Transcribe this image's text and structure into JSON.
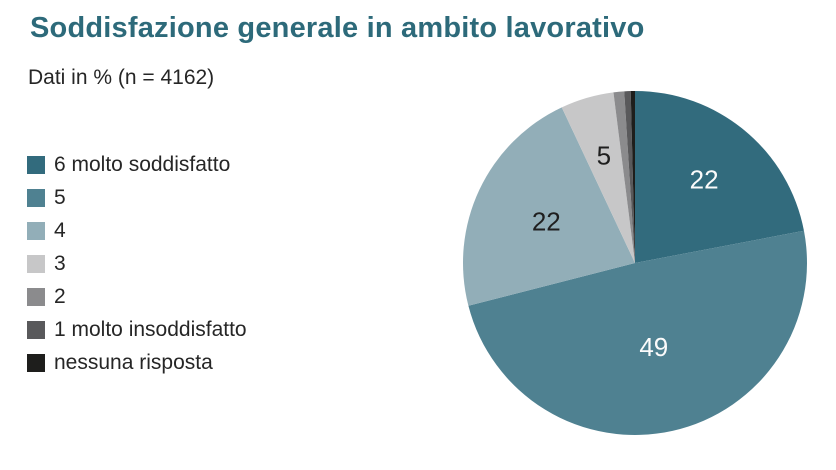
{
  "page": {
    "background": "#ffffff"
  },
  "chart_data": {
    "type": "pie",
    "title": "Soddisfazione generale in ambito lavorativo",
    "subtitle": "Dati in % (n = 4162)",
    "unit": "%",
    "n_shown": "4162",
    "title_color": "#2d6a7a",
    "text_color": "#262626",
    "legend_position": "left",
    "direction": "clockwise",
    "start_angle": "12-oclock",
    "slices": [
      {
        "label": "6 molto soddisfatto",
        "value": 22,
        "display": "22",
        "color": "#326b7d",
        "label_color": "#fbfbfb",
        "label_r": 0.63
      },
      {
        "label": "5",
        "value": 49,
        "display": "49",
        "color": "#4f8191",
        "label_color": "#fbfbfb",
        "label_r": 0.5
      },
      {
        "label": "4",
        "value": 22,
        "display": "22",
        "color": "#92aeb8",
        "label_color": "#1f1f1f",
        "label_r": 0.57
      },
      {
        "label": "3",
        "value": 5,
        "display": "5",
        "color": "#c7c7c8",
        "label_color": "#1f1f1f",
        "label_r": 0.65
      },
      {
        "label": "2",
        "value": 1,
        "display": "",
        "color": "#8b8b8d",
        "label_color": "#1f1f1f",
        "label_r": 0
      },
      {
        "label": "1 molto insoddisfatto",
        "value": 0.6,
        "display": "",
        "color": "#59595b",
        "label_color": "#fbfbfb",
        "label_r": 0
      },
      {
        "label": "nessuna risposta",
        "value": 0.4,
        "display": "",
        "color": "#1e1e1c",
        "label_color": "#fbfbfb",
        "label_r": 0
      }
    ]
  }
}
